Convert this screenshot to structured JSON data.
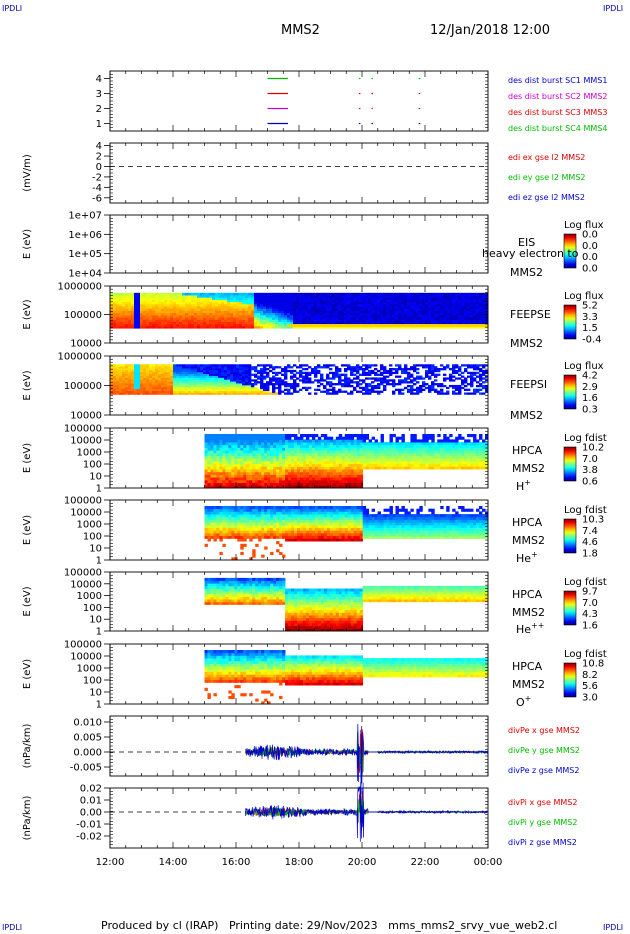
{
  "header": {
    "corner_tl": "IPDLI",
    "corner_tr": "IPDLI",
    "corner_bl": "IPDLI",
    "corner_br": "IPDLI",
    "spacecraft": "MMS2",
    "datetime": "12/Jan/2018 12:00"
  },
  "footer": {
    "text": "Produced by cl (IRAP)   Printing date: 29/Nov/2023   mms_mms2_srvy_vue_web2.cl"
  },
  "chart_data": {
    "type": "stacked-timeseries",
    "x_tick_labels": [
      "12:00",
      "14:00",
      "16:00",
      "18:00",
      "20:00",
      "22:00",
      "00:00"
    ],
    "x_range_hours": [
      12,
      24
    ],
    "panels": [
      {
        "id": "burst",
        "ylim": [
          0.5,
          4.5
        ],
        "yticks": [
          "1",
          "2",
          "3",
          "4"
        ],
        "ylabel": "",
        "legend": [
          {
            "text": "des dist burst SC1 MMS1",
            "color": "#0000cc"
          },
          {
            "text": "des dist burst SC2 MMS2",
            "color": "#cc00cc"
          },
          {
            "text": "des dist burst SC3 MMS3",
            "color": "#dd0000"
          },
          {
            "text": "des dist burst SC4 MMS4",
            "color": "#00bb00"
          }
        ],
        "intervals": [
          {
            "y": 4,
            "color": "#00bb00",
            "t": [
              [
                17.0,
                17.65
              ],
              [
                19.9,
                19.95
              ],
              [
                20.3,
                20.32
              ],
              [
                21.8,
                21.85
              ]
            ]
          },
          {
            "y": 3,
            "color": "#dd0000",
            "t": [
              [
                17.0,
                17.65
              ],
              [
                19.9,
                19.95
              ],
              [
                20.3,
                20.32
              ],
              [
                21.8,
                21.85
              ]
            ]
          },
          {
            "y": 2,
            "color": "#cc00cc",
            "t": [
              [
                17.0,
                17.65
              ],
              [
                19.9,
                19.95
              ],
              [
                20.3,
                20.32
              ],
              [
                21.8,
                21.85
              ]
            ]
          },
          {
            "y": 1,
            "color": "#0000cc",
            "t": [
              [
                17.0,
                17.65
              ],
              [
                19.9,
                19.95
              ],
              [
                20.3,
                20.32
              ],
              [
                21.8,
                21.85
              ]
            ]
          }
        ]
      },
      {
        "id": "edi",
        "ylim": [
          -7,
          4.5
        ],
        "yticks": [
          "4",
          "2",
          "0",
          "-2",
          "-4",
          "-6"
        ],
        "ylabel": "(mV/m)",
        "legend": [
          {
            "text": "edi ex gse l2 MMS2",
            "color": "#dd0000"
          },
          {
            "text": "edi ey gse l2 MMS2",
            "color": "#00bb00"
          },
          {
            "text": "edi ez gse l2 MMS2",
            "color": "#0000cc"
          }
        ]
      },
      {
        "id": "eis",
        "yticks": [
          "1e+07",
          "1e+06",
          "1e+05",
          "1e+04"
        ],
        "ylabel": "E (eV)",
        "labels": [
          "EIS",
          "MMS2"
        ],
        "overlay_text": "heavy electron to",
        "colorbar": {
          "title": "Log flux",
          "ticks": [
            "0.0",
            "0.0",
            "0.0",
            "0.0"
          ]
        }
      },
      {
        "id": "feepse",
        "yticks": [
          "1000000",
          "100000",
          "10000"
        ],
        "ylabel": "E (eV)",
        "labels": [
          "FEEPSE",
          "MMS2"
        ],
        "colorbar": {
          "title": "Log flux",
          "ticks": [
            "5.2",
            "3.3",
            "1.5",
            "-0.4"
          ]
        }
      },
      {
        "id": "feepsi",
        "yticks": [
          "1000000",
          "100000",
          "10000"
        ],
        "ylabel": "E (eV)",
        "labels": [
          "FEEPSI",
          "MMS2"
        ],
        "colorbar": {
          "title": "Log flux",
          "ticks": [
            "4.2",
            "2.9",
            "1.6",
            "0.3"
          ]
        }
      },
      {
        "id": "hpca_h",
        "yticks": [
          "100000",
          "10000",
          "1000",
          "100",
          "10",
          "1"
        ],
        "ylabel": "E (eV)",
        "labels": [
          "HPCA",
          "MMS2",
          "H+"
        ],
        "colorbar": {
          "title": "Log fdist",
          "ticks": [
            "10.2",
            "7.0",
            "3.8",
            "0.6"
          ]
        }
      },
      {
        "id": "hpca_he1",
        "yticks": [
          "100000",
          "10000",
          "1000",
          "100",
          "10",
          "1"
        ],
        "ylabel": "E (eV)",
        "labels": [
          "HPCA",
          "MMS2",
          "He+"
        ],
        "colorbar": {
          "title": "Log fdist",
          "ticks": [
            "10.3",
            "7.4",
            "4.6",
            "1.8"
          ]
        }
      },
      {
        "id": "hpca_he2",
        "yticks": [
          "100000",
          "10000",
          "1000",
          "100",
          "10",
          "1"
        ],
        "ylabel": "E (eV)",
        "labels": [
          "HPCA",
          "MMS2",
          "He++"
        ],
        "colorbar": {
          "title": "Log fdist",
          "ticks": [
            "9.7",
            "7.0",
            "4.3",
            "1.6"
          ]
        }
      },
      {
        "id": "hpca_o",
        "yticks": [
          "100000",
          "10000",
          "1000",
          "100",
          "10",
          "1"
        ],
        "ylabel": "E (eV)",
        "labels": [
          "HPCA",
          "MMS2",
          "O+"
        ],
        "colorbar": {
          "title": "Log fdist",
          "ticks": [
            "10.8",
            "8.2",
            "5.6",
            "3.0"
          ]
        }
      },
      {
        "id": "divpe",
        "ylim": [
          -0.008,
          0.012
        ],
        "yticks": [
          "0.010",
          "0.005",
          "0.000",
          "-0.005"
        ],
        "ylabel": "(nPa/km)",
        "legend": [
          {
            "text": "divPe x gse MMS2",
            "color": "#dd0000"
          },
          {
            "text": "divPe y gse MMS2",
            "color": "#00bb00"
          },
          {
            "text": "divPe z gse MMS2",
            "color": "#0000cc"
          }
        ]
      },
      {
        "id": "divpi",
        "ylim": [
          -0.03,
          0.02
        ],
        "yticks": [
          "0.02",
          "0.01",
          "0.00",
          "-0.01",
          "-0.02"
        ],
        "ylabel": "(nPa/km)",
        "legend": [
          {
            "text": "divPi x gse MMS2",
            "color": "#dd0000"
          },
          {
            "text": "divPi y gse MMS2",
            "color": "#00bb00"
          },
          {
            "text": "divPi z gse MMS2",
            "color": "#0000cc"
          }
        ]
      }
    ]
  }
}
